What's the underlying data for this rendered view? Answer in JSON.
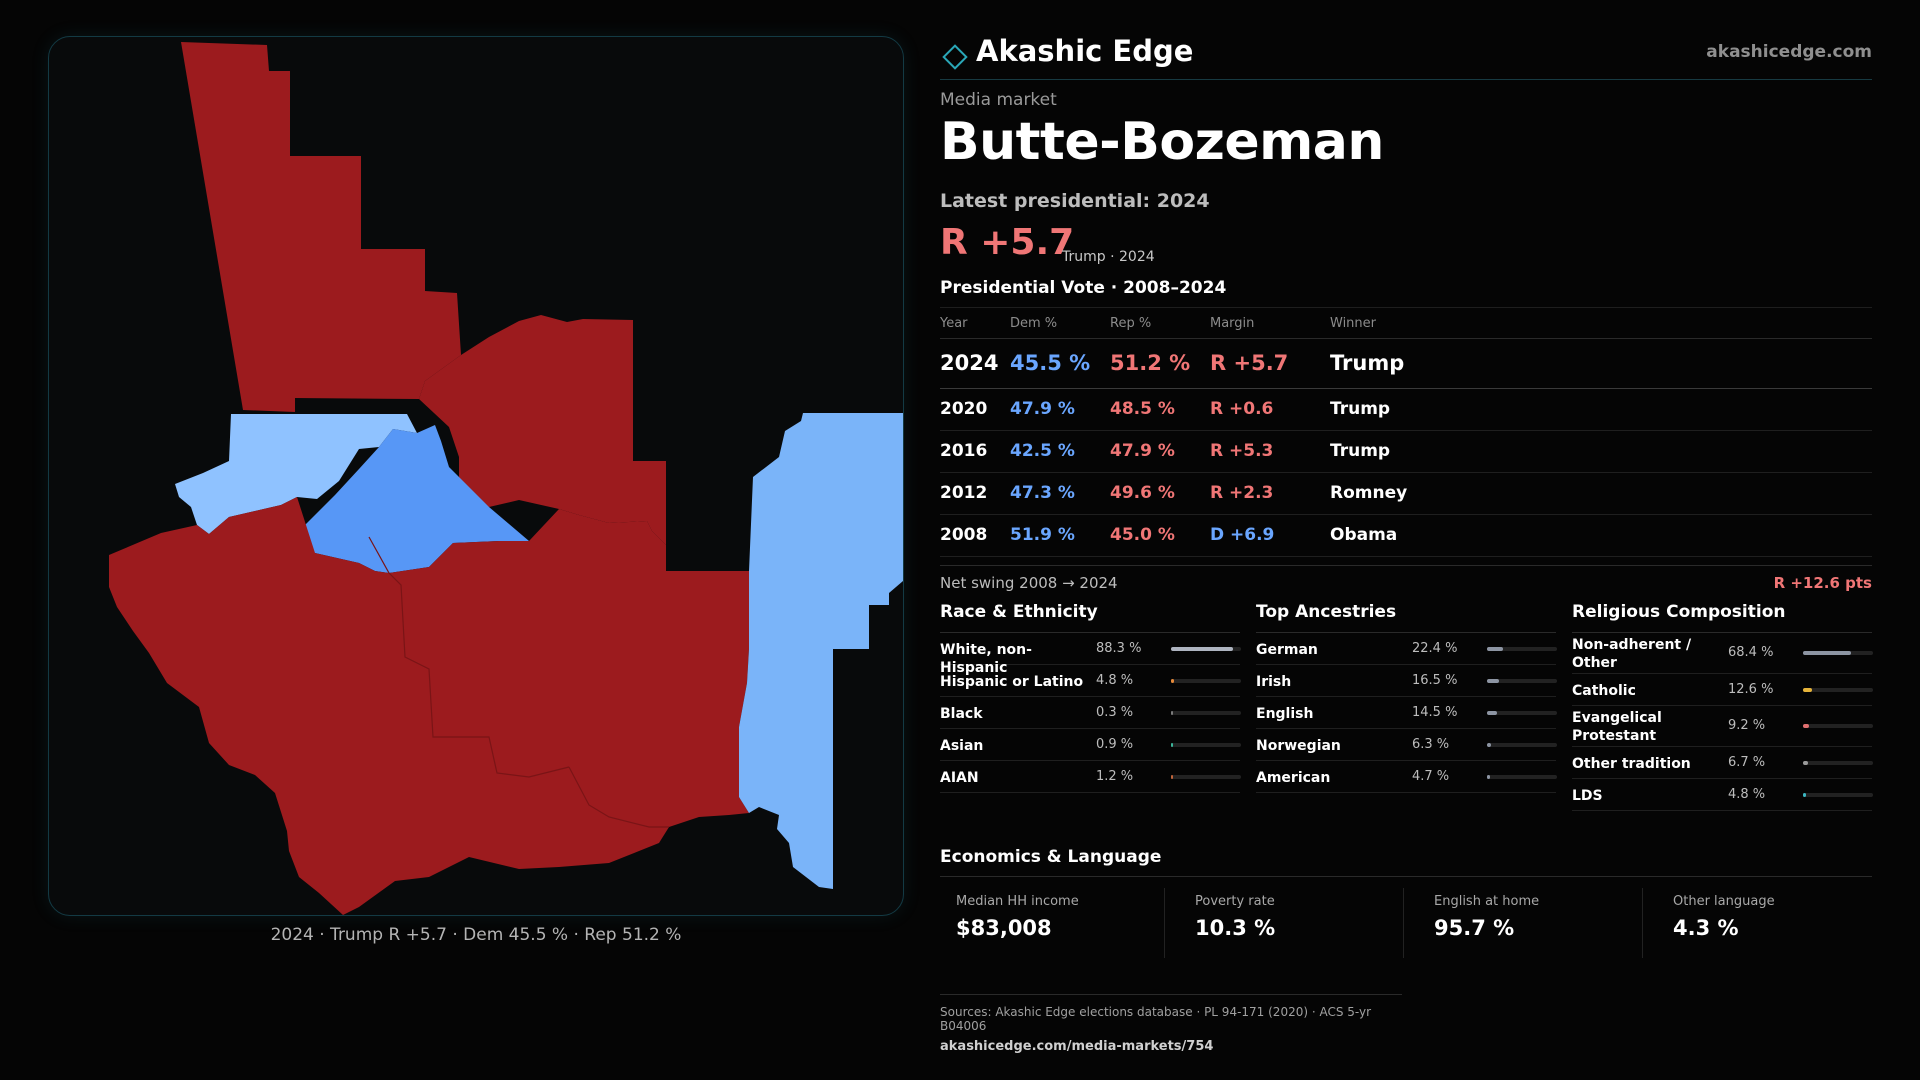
{
  "brand": {
    "name": "Akashic Edge",
    "url": "akashicedge.com",
    "logo_icon": "diamond-outline-icon",
    "accent": "#2aa7b8"
  },
  "header": {
    "eyebrow": "Media market",
    "title": "Butte-Bozeman",
    "latest_label": "Latest presidential: 2024",
    "margin": "R +5.7",
    "margin_note": "Trump · 2024"
  },
  "map": {
    "caption": "2024 · Trump R +5.7 · Dem 45.5 % · Rep 51.2 %",
    "colors": {
      "rep": "#9c1b1e",
      "dem_light": "#8fc2ff",
      "dem_mid": "#7ab4f9",
      "dem_strong": "#5797f6"
    }
  },
  "vote": {
    "title": "Presidential Vote · 2008–2024",
    "headers": {
      "year": "Year",
      "dem": "Dem %",
      "rep": "Rep %",
      "margin": "Margin",
      "winner": "Winner"
    },
    "rows": [
      {
        "year": "2024",
        "dem": "45.5 %",
        "rep": "51.2 %",
        "margin": "R +5.7",
        "winner": "Trump"
      },
      {
        "year": "2020",
        "dem": "47.9 %",
        "rep": "48.5 %",
        "margin": "R +0.6",
        "winner": "Trump"
      },
      {
        "year": "2016",
        "dem": "42.5 %",
        "rep": "47.9 %",
        "margin": "R +5.3",
        "winner": "Trump"
      },
      {
        "year": "2012",
        "dem": "47.3 %",
        "rep": "49.6 %",
        "margin": "R +2.3",
        "winner": "Romney"
      },
      {
        "year": "2008",
        "dem": "51.9 %",
        "rep": "45.0 %",
        "margin": "D +6.9",
        "winner": "Obama"
      }
    ],
    "swing_label": "Net swing 2008 → 2024",
    "swing_value": "R +12.6 pts"
  },
  "race": {
    "title": "Race & Ethnicity",
    "items": [
      {
        "label": "White, non-Hispanic",
        "pct": "88.3 %",
        "value": 0.883,
        "color": "#aeb4c0"
      },
      {
        "label": "Hispanic or Latino",
        "pct": "4.8 %",
        "value": 0.048,
        "color": "#e58a3a"
      },
      {
        "label": "Black",
        "pct": "0.3 %",
        "value": 0.003,
        "color": "#7a7a7a"
      },
      {
        "label": "Asian",
        "pct": "0.9 %",
        "value": 0.009,
        "color": "#3bb59a"
      },
      {
        "label": "AIAN",
        "pct": "1.2 %",
        "value": 0.012,
        "color": "#c0643a"
      }
    ]
  },
  "ancestry": {
    "title": "Top Ancestries",
    "items": [
      {
        "label": "German",
        "pct": "22.4 %",
        "value": 0.224,
        "color": "#8d95a3"
      },
      {
        "label": "Irish",
        "pct": "16.5 %",
        "value": 0.165,
        "color": "#8d95a3"
      },
      {
        "label": "English",
        "pct": "14.5 %",
        "value": 0.145,
        "color": "#8d95a3"
      },
      {
        "label": "Norwegian",
        "pct": "6.3 %",
        "value": 0.063,
        "color": "#8d95a3"
      },
      {
        "label": "American",
        "pct": "4.7 %",
        "value": 0.047,
        "color": "#8d95a3"
      }
    ]
  },
  "religion": {
    "title": "Religious Composition",
    "items": [
      {
        "label": "Non-adherent / Other",
        "pct": "68.4 %",
        "value": 0.684,
        "color": "#8d95a3",
        "tall": true
      },
      {
        "label": "Catholic",
        "pct": "12.6 %",
        "value": 0.126,
        "color": "#e6b43a",
        "tall": false
      },
      {
        "label": "Evangelical Protestant",
        "pct": "9.2 %",
        "value": 0.092,
        "color": "#e07070",
        "tall": true
      },
      {
        "label": "Other tradition",
        "pct": "6.7 %",
        "value": 0.067,
        "color": "#9a9a9a",
        "tall": false
      },
      {
        "label": "LDS",
        "pct": "4.8 %",
        "value": 0.048,
        "color": "#3bb5c0",
        "tall": false
      }
    ]
  },
  "economics": {
    "title": "Economics & Language",
    "items": [
      {
        "label": "Median HH income",
        "value": "$83,008"
      },
      {
        "label": "Poverty rate",
        "value": "10.3 %"
      },
      {
        "label": "English at home",
        "value": "95.7 %"
      },
      {
        "label": "Other language",
        "value": "4.3 %"
      }
    ]
  },
  "sources": {
    "line1": "Sources: Akashic Edge elections database · PL 94-171 (2020) · ACS 5-yr B04006",
    "line2": "akashicedge.com/media-markets/754"
  }
}
